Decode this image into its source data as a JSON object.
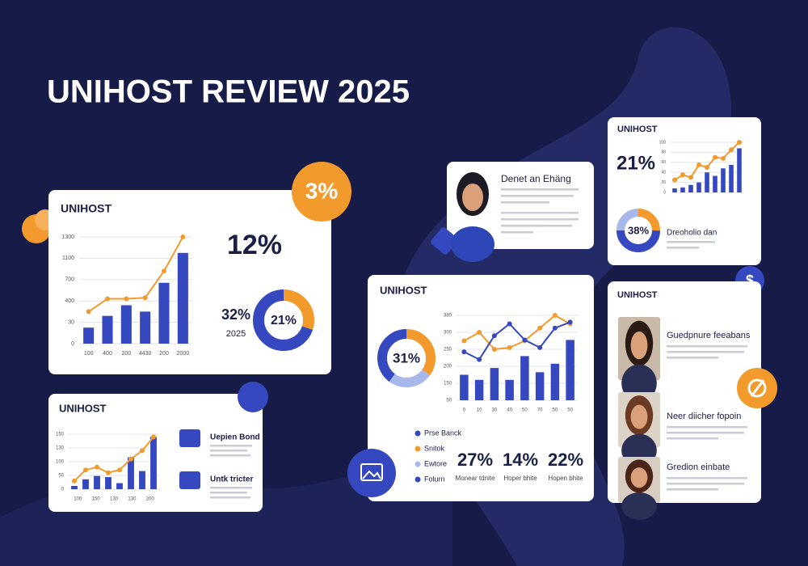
{
  "header": {
    "title": "UNIHOST REVIEW 2025"
  },
  "badge": "3%",
  "card_a": {
    "title": "UNIHOST",
    "stat": "12%",
    "side_stat": "32%",
    "side_year": "2025",
    "donut": {
      "label": "21%",
      "segments": [
        30,
        70
      ]
    },
    "chart": {
      "yticks": [
        "1300",
        "1100",
        "700",
        "400",
        "30",
        "0"
      ],
      "xticks": [
        "100",
        "400",
        "200",
        "4430",
        "200",
        "2000"
      ],
      "bars": [
        15,
        26,
        36,
        30,
        57,
        85
      ],
      "lines": [
        [
          30,
          42,
          42,
          43,
          68,
          100
        ]
      ]
    }
  },
  "card_b": {
    "title": "UNIHOST",
    "chart": {
      "yticks": [
        "150",
        "130",
        "100",
        "50",
        "0"
      ],
      "xticks": [
        "100",
        "150",
        "130",
        "130",
        "200"
      ],
      "bars": [
        6,
        18,
        24,
        22,
        11,
        58,
        33,
        95
      ],
      "lines": [
        [
          15,
          35,
          40,
          30,
          35,
          55,
          70,
          95
        ]
      ]
    },
    "items": [
      {
        "title": "Uepien Bond"
      },
      {
        "title": "Untk tricter"
      }
    ]
  },
  "profile": {
    "name": "Denet an Ehäng"
  },
  "card_c": {
    "title": "UNIHOST",
    "donut": {
      "label": "31%",
      "segments": [
        35,
        25,
        40
      ]
    },
    "chart": {
      "yticks": [
        "380",
        "300",
        "250",
        "200",
        "150",
        "50"
      ],
      "xticks": [
        "0",
        "10",
        "30",
        "40",
        "50",
        "70",
        "50",
        "50"
      ],
      "bars": [
        30,
        24,
        38,
        24,
        52,
        33,
        43,
        71
      ],
      "lines": [
        [
          70,
          80,
          60,
          62,
          70,
          85,
          100,
          90
        ],
        [
          57,
          48,
          76,
          90,
          71,
          62,
          85,
          92
        ]
      ]
    },
    "legend": [
      "Prse Banck",
      "Snitok",
      "Ewtore",
      "Folurn"
    ],
    "stats": [
      {
        "value": "27%",
        "caption": "Monear tdnite"
      },
      {
        "value": "14%",
        "caption": "Hoper bhite"
      },
      {
        "value": "22%",
        "caption": "Hopen bhite"
      }
    ]
  },
  "card_d": {
    "title": "UNIHOST",
    "stat": "21%",
    "caption": "Dreoholio dan",
    "donut": {
      "label": "38%",
      "segments": [
        25,
        50,
        25
      ]
    },
    "chart": {
      "yticks": [
        "100",
        "80",
        "60",
        "40",
        "20",
        "0"
      ],
      "bars": [
        8,
        10,
        15,
        20,
        40,
        33,
        48,
        55,
        88
      ],
      "lines": [
        [
          25,
          35,
          30,
          55,
          50,
          70,
          68,
          85,
          100
        ]
      ]
    }
  },
  "card_e": {
    "title": "UNIHOST",
    "people": [
      {
        "name": "Guedpnure feeabans"
      },
      {
        "name": "Neer diicher fopoin"
      },
      {
        "name": "Gredion einbate"
      }
    ]
  }
}
